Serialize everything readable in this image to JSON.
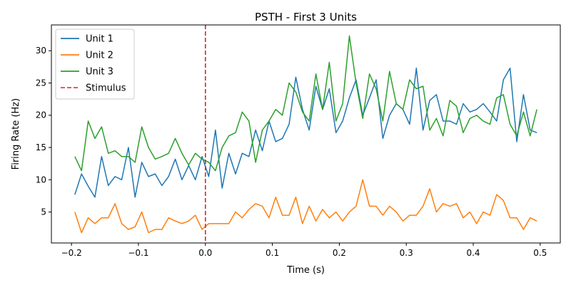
{
  "chart_data": {
    "type": "line",
    "title": "PSTH - First 3 Units",
    "xlabel": "Time (s)",
    "ylabel": "Firing Rate (Hz)",
    "xlim": [
      -0.23,
      0.53
    ],
    "ylim": [
      0.2,
      34.0
    ],
    "xticks": [
      -0.2,
      -0.1,
      0.0,
      0.1,
      0.2,
      0.3,
      0.4,
      0.5
    ],
    "xtick_labels": [
      "−0.2",
      "−0.1",
      "0.0",
      "0.1",
      "0.2",
      "0.3",
      "0.4",
      "0.5"
    ],
    "yticks": [
      5,
      10,
      15,
      20,
      25,
      30
    ],
    "ytick_labels": [
      "5",
      "10",
      "15",
      "20",
      "25",
      "30"
    ],
    "grid": false,
    "legend_position": "top-left",
    "x_start": -0.195,
    "x_step": 0.01,
    "series": [
      {
        "name": "Unit 1",
        "color": "#1f77b4",
        "values": [
          7.7,
          10.9,
          9.0,
          7.3,
          13.6,
          9.1,
          10.5,
          10.0,
          15.0,
          7.3,
          12.7,
          10.5,
          10.9,
          9.1,
          10.5,
          13.2,
          10.0,
          12.2,
          10.0,
          13.6,
          10.5,
          17.7,
          8.7,
          14.1,
          10.9,
          14.1,
          13.6,
          17.7,
          14.5,
          19.1,
          15.9,
          16.4,
          18.6,
          25.9,
          20.9,
          17.7,
          24.5,
          20.9,
          24.1,
          17.3,
          19.1,
          22.7,
          25.5,
          20.0,
          22.7,
          25.5,
          16.4,
          20.0,
          21.8,
          20.9,
          18.6,
          27.3,
          17.7,
          22.3,
          23.2,
          19.1,
          19.1,
          18.6,
          21.8,
          20.5,
          20.9,
          21.8,
          20.5,
          19.1,
          25.5,
          27.3,
          15.9,
          23.2,
          17.7,
          17.3
        ]
      },
      {
        "name": "Unit 2",
        "color": "#ff7f0e",
        "values": [
          5.0,
          1.8,
          4.1,
          3.2,
          4.1,
          4.1,
          6.3,
          3.2,
          2.3,
          2.7,
          5.0,
          1.8,
          2.3,
          2.3,
          4.1,
          3.6,
          3.2,
          3.6,
          4.5,
          2.3,
          3.2,
          3.2,
          3.2,
          3.2,
          5.0,
          4.1,
          5.4,
          6.3,
          5.9,
          4.1,
          7.3,
          4.5,
          4.5,
          7.3,
          3.2,
          5.9,
          3.6,
          5.4,
          4.1,
          5.0,
          3.6,
          5.0,
          5.9,
          10.0,
          5.9,
          5.9,
          4.5,
          5.9,
          5.0,
          3.6,
          4.5,
          4.5,
          5.9,
          8.6,
          5.0,
          6.3,
          5.9,
          6.3,
          4.1,
          5.0,
          3.2,
          5.0,
          4.5,
          7.7,
          6.8,
          4.1,
          4.1,
          2.3,
          4.1,
          3.6
        ]
      },
      {
        "name": "Unit 3",
        "color": "#2ca02c",
        "values": [
          13.6,
          11.4,
          19.1,
          16.4,
          18.2,
          14.1,
          14.5,
          13.6,
          13.6,
          12.7,
          18.2,
          15.0,
          13.2,
          13.6,
          14.1,
          16.4,
          14.1,
          12.3,
          14.1,
          13.2,
          12.7,
          11.4,
          15.0,
          16.8,
          17.3,
          20.5,
          19.1,
          12.7,
          17.7,
          19.1,
          20.9,
          20.0,
          25.0,
          23.6,
          20.5,
          19.1,
          26.4,
          20.9,
          28.2,
          19.1,
          21.8,
          32.3,
          25.0,
          19.5,
          26.4,
          24.1,
          19.1,
          26.8,
          21.8,
          20.9,
          25.5,
          24.1,
          24.5,
          17.7,
          19.5,
          16.8,
          22.3,
          21.4,
          17.3,
          19.5,
          20.0,
          19.1,
          18.6,
          22.7,
          23.2,
          18.6,
          16.8,
          20.5,
          16.8,
          20.9
        ]
      }
    ],
    "annotations": [
      {
        "type": "vline",
        "x": 0.0,
        "label": "Stimulus",
        "color": "#d62728",
        "style": "dashed"
      }
    ]
  }
}
